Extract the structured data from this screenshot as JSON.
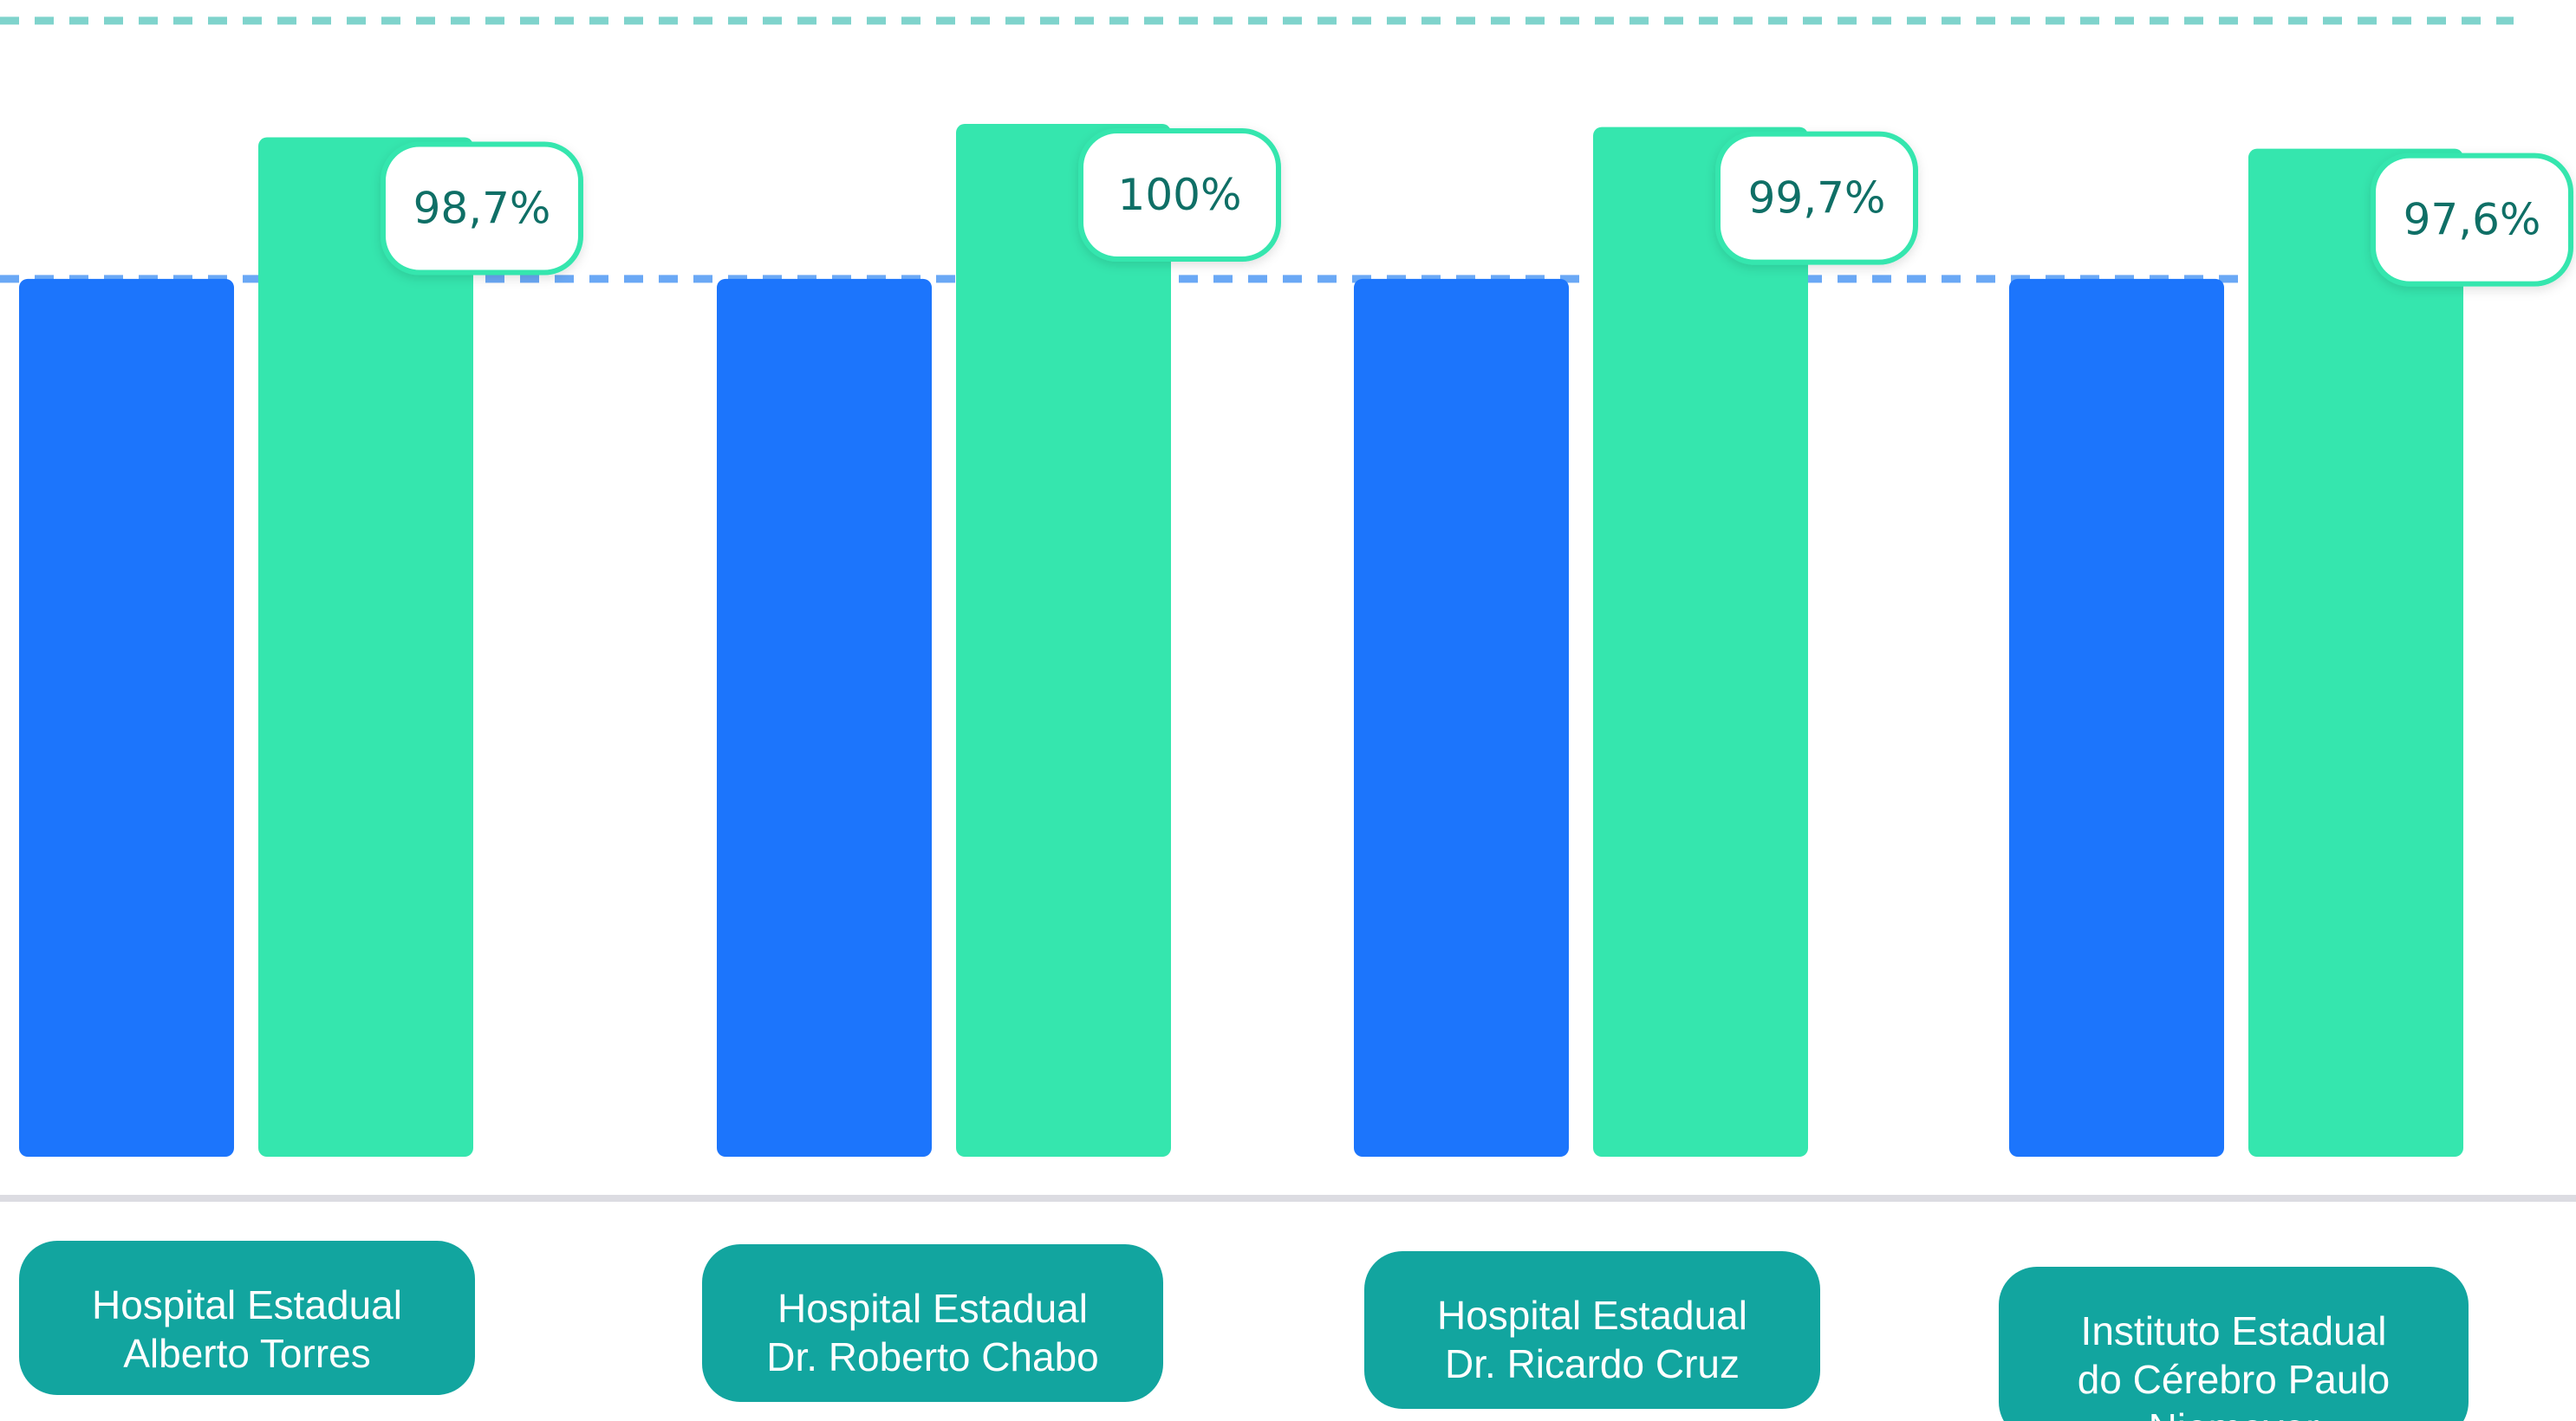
{
  "chart_data": {
    "type": "bar",
    "categories": [
      [
        "Hospital Estadual",
        "Alberto Torres"
      ],
      [
        "Hospital Estadual",
        "Dr. Roberto Chabo"
      ],
      [
        "Hospital Estadual",
        "Dr. Ricardo Cruz"
      ],
      [
        "Instituto Estadual",
        "do Cérebro Paulo",
        "Niemeyer"
      ]
    ],
    "series": [
      {
        "values": [
          85,
          85,
          85,
          85
        ],
        "color": "#1c75fc"
      },
      {
        "values": [
          98.7,
          100,
          99.7,
          97.6
        ],
        "color": "#35e6ae"
      }
    ],
    "data_labels": [
      "98,7%",
      "100%",
      "99,7%",
      "97,6%"
    ],
    "reference_lines": [
      {
        "value": 110,
        "color": "#7fd3cc",
        "style": "dashed"
      },
      {
        "value": 85,
        "color": "#6aa8f5",
        "style": "dashed"
      }
    ],
    "ylim": [
      0,
      112
    ],
    "grid": false,
    "legend": "none",
    "colors": {
      "label_box": "#12a59f",
      "label_text": "#ffffff",
      "callout_border": "#35e6ae",
      "callout_text": "#0f6f66",
      "baseline": "#dcdce2"
    }
  }
}
